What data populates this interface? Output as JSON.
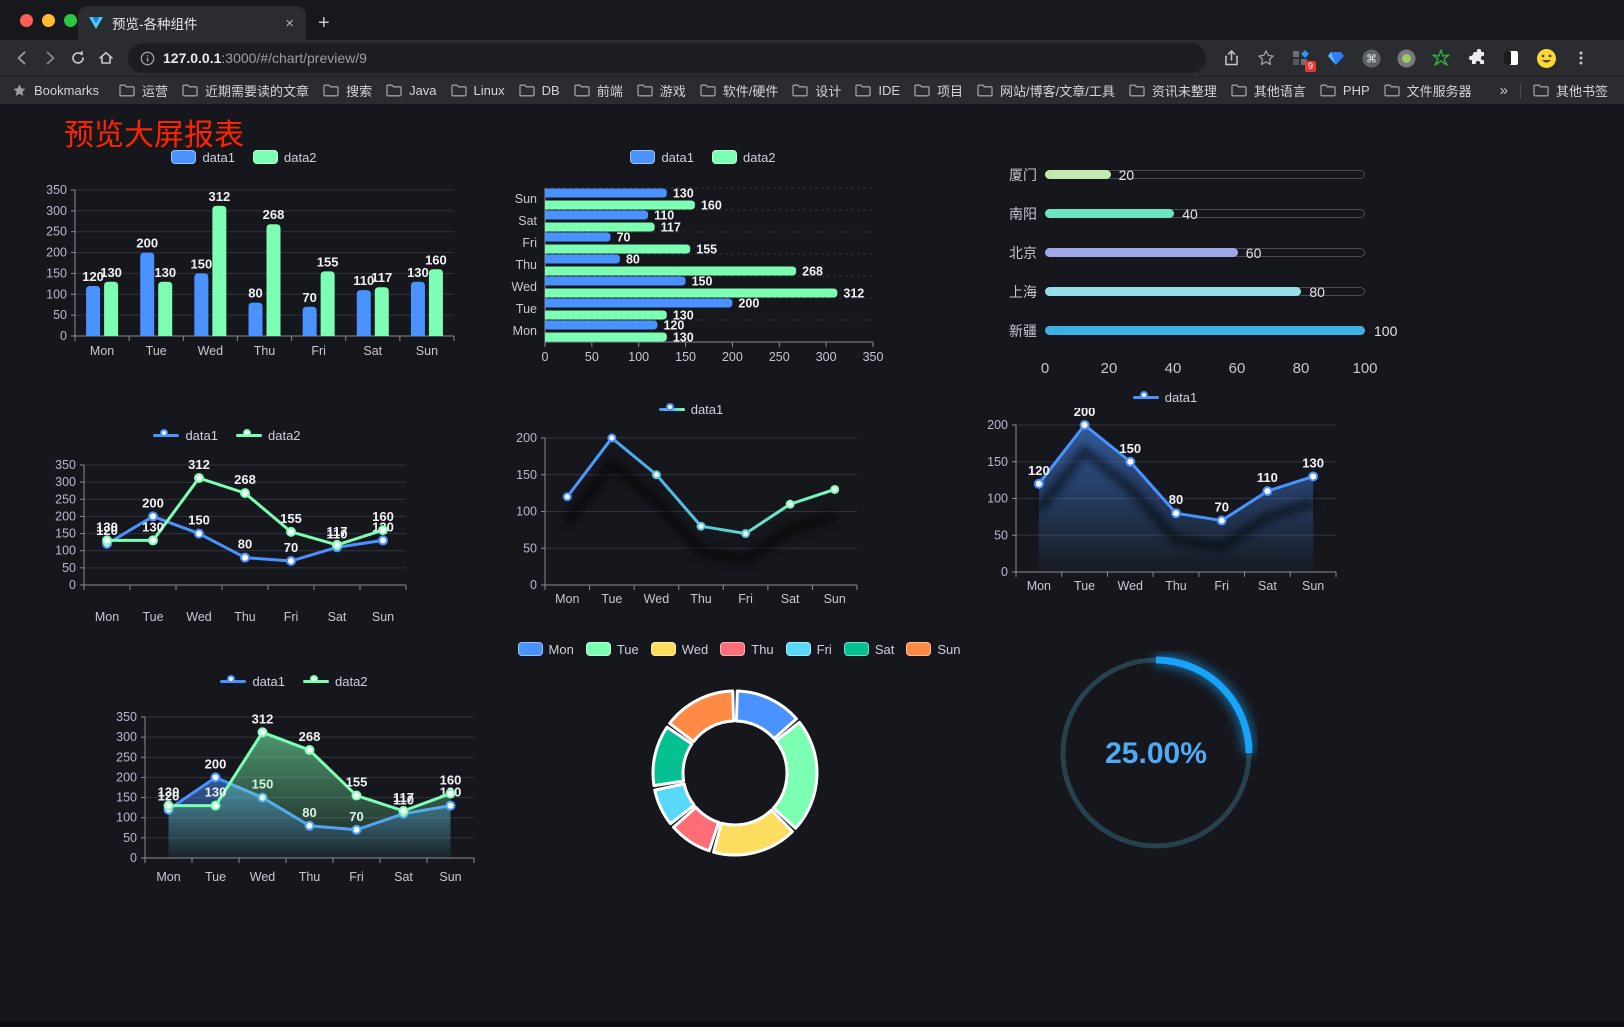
{
  "browser": {
    "tab_title": "预览-各种组件",
    "url_host": "127.0.0.1",
    "url_rest": ":3000/#/chart/preview/9",
    "extension_badge": "9",
    "new_tab_label": "+",
    "close_tab_label": "×"
  },
  "bookmarks": {
    "label": "Bookmarks",
    "folders": [
      "运营",
      "近期需要读的文章",
      "搜索",
      "Java",
      "Linux",
      "DB",
      "前端",
      "游戏",
      "软件/硬件",
      "设计",
      "IDE",
      "项目",
      "网站/博客/文章/工具",
      "资讯未整理",
      "其他语言",
      "PHP",
      "文件服务器"
    ],
    "overflow": "»",
    "other": "其他书签"
  },
  "page": {
    "title": "预览大屏报表",
    "title_color": "#ff2400"
  },
  "chart_data": [
    {
      "type": "bar",
      "orientation": "vertical",
      "categories": [
        "Mon",
        "Tue",
        "Wed",
        "Thu",
        "Fri",
        "Sat",
        "Sun"
      ],
      "series": [
        {
          "name": "data1",
          "color": "#4992ff",
          "values": [
            120,
            200,
            150,
            80,
            70,
            110,
            130
          ]
        },
        {
          "name": "data2",
          "color": "#7cffb2",
          "values": [
            130,
            130,
            312,
            268,
            155,
            117,
            160
          ]
        }
      ],
      "ylim": [
        0,
        350
      ],
      "y_step": 50,
      "value_labels": true,
      "legend_position": "top",
      "grid": true
    },
    {
      "type": "bar",
      "orientation": "horizontal",
      "categories": [
        "Mon",
        "Tue",
        "Wed",
        "Thu",
        "Fri",
        "Sat",
        "Sun"
      ],
      "series": [
        {
          "name": "data1",
          "color": "#4992ff",
          "values": [
            120,
            200,
            150,
            80,
            70,
            110,
            130
          ]
        },
        {
          "name": "data2",
          "color": "#7cffb2",
          "values": [
            130,
            130,
            312,
            268,
            155,
            117,
            160
          ]
        }
      ],
      "xlim": [
        0,
        350
      ],
      "x_step": 50,
      "value_labels": true,
      "legend_position": "top",
      "grid": true
    },
    {
      "type": "bar",
      "subtype": "progress",
      "rows": [
        {
          "label": "厦门",
          "value": 20,
          "color": "#c4ebad"
        },
        {
          "label": "南阳",
          "value": 40,
          "color": "#6be6c1"
        },
        {
          "label": "北京",
          "value": 60,
          "color": "#a0a7e6"
        },
        {
          "label": "上海",
          "value": 80,
          "color": "#96dee8"
        },
        {
          "label": "新疆",
          "value": 100,
          "color": "#3fb1e3"
        }
      ],
      "xlim": [
        0,
        100
      ],
      "x_ticks": [
        0,
        20,
        40,
        60,
        80,
        100
      ]
    },
    {
      "type": "line",
      "categories": [
        "Mon",
        "Tue",
        "Wed",
        "Thu",
        "Fri",
        "Sat",
        "Sun"
      ],
      "series": [
        {
          "name": "data1",
          "color": "#4992ff",
          "values": [
            120,
            200,
            150,
            80,
            70,
            110,
            130
          ]
        },
        {
          "name": "data2",
          "color": "#7cffb2",
          "values": [
            130,
            130,
            312,
            268,
            155,
            117,
            160
          ]
        }
      ],
      "ylim": [
        0,
        350
      ],
      "y_step": 50,
      "value_labels": true,
      "legend_position": "top",
      "grid": true
    },
    {
      "type": "line",
      "categories": [
        "Mon",
        "Tue",
        "Wed",
        "Thu",
        "Fri",
        "Sat",
        "Sun"
      ],
      "series": [
        {
          "name": "data1",
          "color_gradient": [
            "#4992ff",
            "#53c7e0",
            "#7cffb2"
          ],
          "values": [
            120,
            200,
            150,
            80,
            70,
            110,
            130
          ]
        }
      ],
      "ylim": [
        0,
        200
      ],
      "y_step": 50,
      "value_labels": false,
      "shadow": true,
      "legend_position": "top",
      "grid": true
    },
    {
      "type": "area",
      "categories": [
        "Mon",
        "Tue",
        "Wed",
        "Thu",
        "Fri",
        "Sat",
        "Sun"
      ],
      "series": [
        {
          "name": "data1",
          "color": "#4992ff",
          "values": [
            120,
            200,
            150,
            80,
            70,
            110,
            130
          ],
          "area": true
        }
      ],
      "ylim": [
        0,
        200
      ],
      "y_step": 50,
      "value_labels": true,
      "shadow": true,
      "legend_position": "top",
      "grid": true
    },
    {
      "type": "area",
      "categories": [
        "Mon",
        "Tue",
        "Wed",
        "Thu",
        "Fri",
        "Sat",
        "Sun"
      ],
      "series": [
        {
          "name": "data1",
          "color": "#4992ff",
          "values": [
            120,
            200,
            150,
            80,
            70,
            110,
            130
          ],
          "area": true
        },
        {
          "name": "data2",
          "color": "#7cffb2",
          "values": [
            130,
            130,
            312,
            268,
            155,
            117,
            160
          ],
          "area": true
        }
      ],
      "ylim": [
        0,
        350
      ],
      "y_step": 50,
      "value_labels": true,
      "legend_position": "top",
      "grid": true
    },
    {
      "type": "pie",
      "subtype": "donut",
      "categories": [
        "Mon",
        "Tue",
        "Wed",
        "Thu",
        "Fri",
        "Sat",
        "Sun"
      ],
      "values": [
        120,
        200,
        150,
        80,
        70,
        110,
        130
      ],
      "colors": [
        "#4992ff",
        "#7cffb2",
        "#fddd60",
        "#ff6e76",
        "#58d9f9",
        "#05c091",
        "#ff8a45"
      ],
      "legend_position": "top"
    },
    {
      "type": "gauge",
      "value": 25,
      "max": 100,
      "label": "25.00%",
      "color": "#18a2f8",
      "track_color": "#26434d",
      "text_color": "#4fabf5"
    }
  ]
}
